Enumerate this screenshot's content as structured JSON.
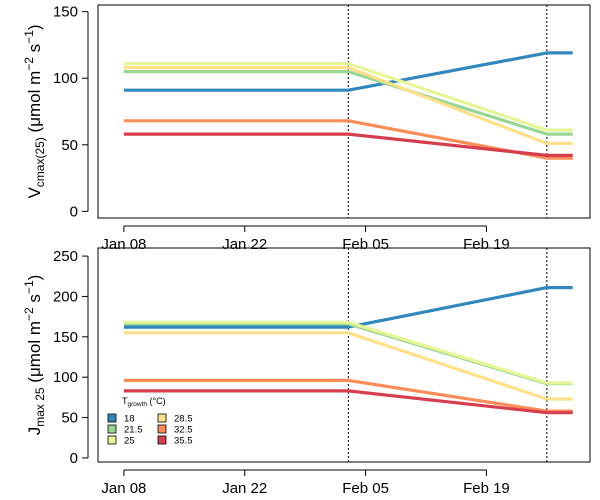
{
  "chart_data": [
    {
      "type": "line",
      "ylabel_main": "V",
      "ylabel_sub": "cmax(25)",
      "ylabel_unit": "(μmol m",
      "ylabel_exp1": "−2",
      "ylabel_mid": " s",
      "ylabel_exp2": "−1",
      "ylabel_close": ")",
      "ylim": [
        -5,
        155
      ],
      "yticks": [
        0,
        50,
        100,
        150
      ],
      "x_range": [
        "2011-01-05",
        "2011-03-03"
      ],
      "xticks": [
        {
          "date": "2011-01-08",
          "label": "Jan 08"
        },
        {
          "date": "2011-01-22",
          "label": "Jan 22"
        },
        {
          "date": "2011-02-05",
          "label": "Feb 05"
        },
        {
          "date": "2011-02-19",
          "label": "Feb 19"
        }
      ],
      "vlines": [
        "2011-02-03",
        "2011-02-26"
      ],
      "series": [
        {
          "name": "18",
          "color": "#3288bd",
          "x": [
            "2011-01-08",
            "2011-02-03",
            "2011-02-26",
            "2011-03-01"
          ],
          "y": [
            91,
            91,
            119,
            119
          ]
        },
        {
          "name": "21.5",
          "color": "#99d594",
          "x": [
            "2011-01-08",
            "2011-02-03",
            "2011-02-26",
            "2011-03-01"
          ],
          "y": [
            105,
            105,
            58,
            58
          ]
        },
        {
          "name": "25",
          "color": "#e6f598",
          "x": [
            "2011-01-08",
            "2011-02-03",
            "2011-02-26",
            "2011-03-01"
          ],
          "y": [
            111,
            111,
            61,
            61
          ]
        },
        {
          "name": "28.5",
          "color": "#fee08b",
          "x": [
            "2011-01-08",
            "2011-02-03",
            "2011-02-26",
            "2011-03-01"
          ],
          "y": [
            108,
            108,
            51,
            51
          ]
        },
        {
          "name": "32.5",
          "color": "#fc8d59",
          "x": [
            "2011-01-08",
            "2011-02-03",
            "2011-02-26",
            "2011-03-01"
          ],
          "y": [
            68,
            68,
            40,
            40
          ]
        },
        {
          "name": "35.5",
          "color": "#d53e4f",
          "x": [
            "2011-01-08",
            "2011-02-03",
            "2011-02-26",
            "2011-03-01"
          ],
          "y": [
            58,
            58,
            42,
            42
          ]
        }
      ]
    },
    {
      "type": "line",
      "ylabel_main": "J",
      "ylabel_sub": "max 25",
      "ylabel_unit": "(μmol m",
      "ylabel_exp1": "−2",
      "ylabel_mid": " s",
      "ylabel_exp2": "−1",
      "ylabel_close": ")",
      "ylim": [
        -5,
        260
      ],
      "yticks": [
        0,
        50,
        100,
        150,
        200,
        250
      ],
      "x_range": [
        "2011-01-05",
        "2011-03-03"
      ],
      "xticks": [
        {
          "date": "2011-01-08",
          "label": "Jan 08"
        },
        {
          "date": "2011-01-22",
          "label": "Jan 22"
        },
        {
          "date": "2011-02-05",
          "label": "Feb 05"
        },
        {
          "date": "2011-02-19",
          "label": "Feb 19"
        }
      ],
      "vlines": [
        "2011-02-03",
        "2011-02-26"
      ],
      "legend": {
        "title_main": "T",
        "title_sub": "growth",
        "title_unit": " (°C)",
        "placement": "bottom-left"
      },
      "series": [
        {
          "name": "18",
          "color": "#3288bd",
          "x": [
            "2011-01-08",
            "2011-02-03",
            "2011-02-26",
            "2011-03-01"
          ],
          "y": [
            162,
            162,
            211,
            211
          ]
        },
        {
          "name": "21.5",
          "color": "#99d594",
          "x": [
            "2011-01-08",
            "2011-02-03",
            "2011-02-26",
            "2011-03-01"
          ],
          "y": [
            166,
            166,
            92,
            92
          ]
        },
        {
          "name": "25",
          "color": "#e6f598",
          "x": [
            "2011-01-08",
            "2011-02-03",
            "2011-02-26",
            "2011-03-01"
          ],
          "y": [
            168,
            168,
            93,
            93
          ]
        },
        {
          "name": "28.5",
          "color": "#fee08b",
          "x": [
            "2011-01-08",
            "2011-02-03",
            "2011-02-26",
            "2011-03-01"
          ],
          "y": [
            155,
            155,
            73,
            73
          ]
        },
        {
          "name": "32.5",
          "color": "#fc8d59",
          "x": [
            "2011-01-08",
            "2011-02-03",
            "2011-02-26",
            "2011-03-01"
          ],
          "y": [
            96,
            96,
            58,
            58
          ]
        },
        {
          "name": "35.5",
          "color": "#d53e4f",
          "x": [
            "2011-01-08",
            "2011-02-03",
            "2011-02-26",
            "2011-03-01"
          ],
          "y": [
            83,
            83,
            56,
            56
          ]
        }
      ]
    }
  ]
}
